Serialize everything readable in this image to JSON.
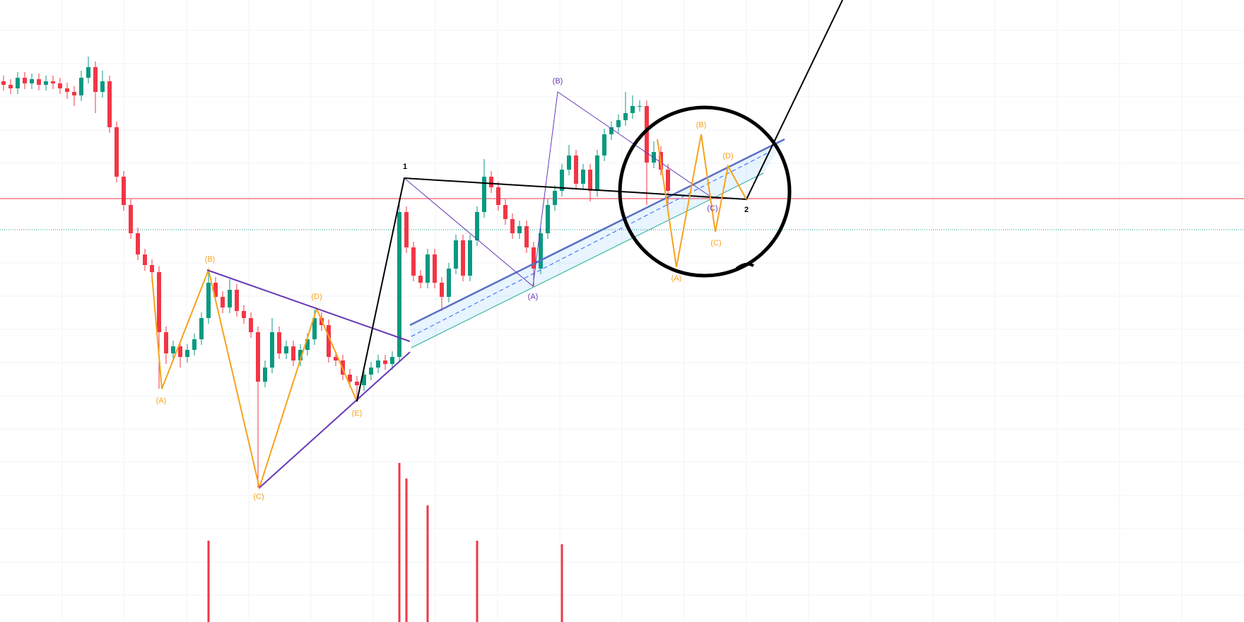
{
  "chart_data": {
    "type": "candlestick",
    "up_color": "#089981",
    "down_color": "#f23645",
    "volume_color": "#f23645",
    "ylim": [
      0,
      880
    ],
    "open": [
      765,
      760,
      755,
      770,
      762,
      768,
      760,
      765,
      762,
      755,
      750,
      745,
      770,
      785,
      750,
      765,
      700,
      630,
      590,
      550,
      520,
      505,
      495,
      410,
      380,
      390,
      375,
      385,
      400,
      430,
      480,
      460,
      445,
      470,
      440,
      430,
      410,
      340,
      360,
      410,
      380,
      390,
      370,
      385,
      400,
      430,
      420,
      375,
      370,
      350,
      340,
      335,
      350,
      360,
      370,
      365,
      375,
      580,
      530,
      490,
      480,
      520,
      480,
      460,
      500,
      540,
      490,
      540,
      580,
      630,
      615,
      590,
      570,
      550,
      560,
      530,
      500,
      550,
      590,
      610,
      640,
      660,
      620,
      640,
      610,
      660,
      690,
      700,
      710,
      720,
      730,
      730,
      650,
      665,
      640
    ],
    "high": [
      773,
      768,
      778,
      778,
      776,
      776,
      773,
      773,
      770,
      763,
      758,
      780,
      800,
      793,
      780,
      773,
      708,
      638,
      598,
      558,
      528,
      513,
      503,
      418,
      398,
      398,
      393,
      408,
      438,
      500,
      488,
      468,
      485,
      478,
      448,
      438,
      418,
      370,
      430,
      418,
      398,
      398,
      393,
      408,
      442,
      438,
      428,
      383,
      378,
      358,
      348,
      358,
      368,
      378,
      378,
      383,
      600,
      588,
      538,
      498,
      528,
      528,
      488,
      508,
      548,
      548,
      548,
      588,
      655,
      638,
      623,
      598,
      578,
      568,
      568,
      538,
      558,
      598,
      618,
      648,
      675,
      668,
      648,
      648,
      668,
      698,
      708,
      718,
      750,
      745,
      738,
      738,
      680,
      673,
      648
    ],
    "low": [
      752,
      747,
      747,
      754,
      754,
      752,
      752,
      754,
      747,
      740,
      730,
      737,
      762,
      720,
      742,
      692,
      622,
      582,
      542,
      512,
      497,
      480,
      330,
      365,
      372,
      360,
      367,
      377,
      392,
      422,
      452,
      437,
      437,
      432,
      422,
      402,
      190,
      332,
      352,
      372,
      372,
      362,
      362,
      377,
      392,
      412,
      367,
      362,
      342,
      332,
      312,
      327,
      342,
      352,
      357,
      357,
      367,
      522,
      482,
      472,
      472,
      472,
      440,
      452,
      492,
      482,
      482,
      532,
      572,
      607,
      582,
      562,
      542,
      542,
      522,
      475,
      492,
      542,
      582,
      602,
      632,
      612,
      612,
      595,
      602,
      652,
      682,
      692,
      702,
      712,
      722,
      590,
      642,
      632,
      580
    ],
    "close": [
      760,
      755,
      770,
      762,
      768,
      760,
      765,
      762,
      755,
      750,
      745,
      770,
      785,
      750,
      765,
      700,
      630,
      590,
      550,
      520,
      505,
      495,
      410,
      380,
      390,
      375,
      385,
      400,
      430,
      480,
      460,
      445,
      470,
      440,
      430,
      410,
      340,
      360,
      410,
      380,
      390,
      370,
      385,
      400,
      430,
      420,
      375,
      370,
      350,
      340,
      335,
      350,
      360,
      370,
      365,
      375,
      580,
      530,
      490,
      480,
      520,
      480,
      460,
      500,
      540,
      490,
      540,
      580,
      630,
      615,
      590,
      570,
      550,
      560,
      530,
      500,
      550,
      590,
      610,
      640,
      660,
      620,
      640,
      610,
      660,
      690,
      700,
      710,
      720,
      730,
      730,
      650,
      665,
      640,
      610
    ],
    "volume": [
      null,
      null,
      null,
      null,
      null,
      null,
      null,
      null,
      null,
      null,
      null,
      null,
      null,
      null,
      null,
      null,
      null,
      null,
      null,
      null,
      null,
      null,
      null,
      null,
      null,
      null,
      null,
      null,
      null,
      115,
      null,
      null,
      null,
      null,
      null,
      null,
      null,
      null,
      null,
      null,
      null,
      null,
      null,
      null,
      null,
      null,
      null,
      null,
      null,
      null,
      null,
      null,
      null,
      null,
      null,
      null,
      225,
      203,
      null,
      null,
      165,
      null,
      null,
      null,
      null,
      null,
      null,
      115,
      null,
      null,
      null,
      null,
      null,
      null,
      null,
      null,
      null,
      null,
      null,
      110,
      null,
      null,
      null,
      null,
      null,
      null,
      null,
      null,
      null,
      null,
      null,
      null,
      null,
      null,
      null
    ]
  },
  "annotations": [
    "(A)",
    "(B)",
    "(C)",
    "(D)",
    "(E)",
    "1",
    "(A)",
    "(B)",
    "(C)",
    "(A)",
    "(B)",
    "(C)",
    "(D)",
    "2"
  ]
}
